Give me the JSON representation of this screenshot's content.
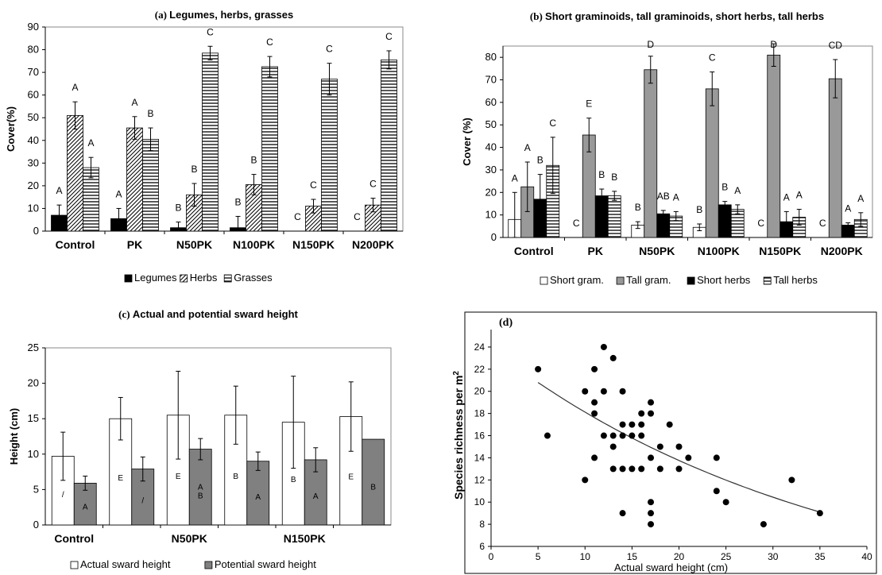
{
  "chart_data": [
    {
      "panel_id": "(a)",
      "type": "bar",
      "title": "Legumes, herbs, grasses",
      "ylabel": "Cover(%)",
      "xlabel": "",
      "ylim": [
        0,
        90
      ],
      "yticks": [
        0,
        10,
        20,
        30,
        40,
        50,
        60,
        70,
        80,
        90
      ],
      "grid": false,
      "legend_position": "bottom",
      "categories": [
        "Control",
        "PK",
        "N50PK",
        "N100PK",
        "N150PK",
        "N200PK"
      ],
      "series": [
        {
          "name": "Legumes",
          "fill": "solid",
          "color": "#000000",
          "values": [
            7,
            5.5,
            1.5,
            1.5,
            0,
            0
          ],
          "errors": [
            4.5,
            4.5,
            2.5,
            5,
            0,
            0
          ],
          "letters": [
            "A",
            "A",
            "B",
            "B",
            "C",
            "C"
          ]
        },
        {
          "name": "Herbs",
          "fill": "diagonal",
          "color": "#000000",
          "values": [
            51,
            45.5,
            16,
            20.5,
            11,
            11.5
          ],
          "errors": [
            6,
            5,
            5,
            4.5,
            3,
            3
          ],
          "letters": [
            "A",
            "A",
            "B",
            "B",
            "C",
            "C"
          ]
        },
        {
          "name": "Grasses",
          "fill": "horizontal",
          "color": "#000000",
          "values": [
            28,
            40.5,
            78.5,
            72.5,
            67,
            75.5
          ],
          "errors": [
            4.5,
            5,
            3,
            4.5,
            7,
            4
          ],
          "letters": [
            "A",
            "B",
            "C",
            "C",
            "C",
            "C"
          ]
        }
      ]
    },
    {
      "panel_id": "(b)",
      "type": "bar",
      "title": "Short graminoids, tall graminoids, short herbs, tall herbs",
      "ylabel": "Cover (%)",
      "xlabel": "",
      "ylim": [
        0,
        85
      ],
      "yticks": [
        0,
        10,
        20,
        30,
        40,
        50,
        60,
        70,
        80
      ],
      "grid": false,
      "legend_position": "bottom",
      "categories": [
        "Control",
        "PK",
        "N50PK",
        "N100PK",
        "N150PK",
        "N200PK"
      ],
      "series": [
        {
          "name": "Short gram.",
          "fill": "white",
          "color": "#000000",
          "values": [
            8,
            0,
            5.5,
            4.5,
            0,
            0
          ],
          "errors": [
            12,
            0,
            1.5,
            1.5,
            0,
            0
          ],
          "letters": [
            "A",
            "C",
            "B",
            "B",
            "C",
            "C"
          ]
        },
        {
          "name": "Tall gram.",
          "fill": "gray",
          "color": "#999999",
          "values": [
            22.5,
            45.5,
            74.5,
            66,
            81,
            70.5
          ],
          "errors": [
            11,
            7.5,
            6,
            7.5,
            5,
            8.5
          ],
          "letters": [
            "A",
            "E",
            "D",
            "C",
            "D",
            "CD"
          ]
        },
        {
          "name": "Short herbs",
          "fill": "solid",
          "color": "#000000",
          "values": [
            17,
            18.5,
            10.5,
            14.5,
            7,
            5.5
          ],
          "errors": [
            11,
            3,
            1.5,
            1.5,
            4.5,
            1
          ],
          "letters": [
            "B",
            "B",
            "AB",
            "B",
            "A",
            "A"
          ]
        },
        {
          "name": "Tall herbs",
          "fill": "horizontal",
          "color": "#000000",
          "values": [
            32,
            18.5,
            9.5,
            12.5,
            9,
            8
          ],
          "errors": [
            12.5,
            2,
            2,
            2,
            3.5,
            3
          ],
          "letters": [
            "C",
            "B",
            "A",
            "A",
            "A",
            "A"
          ]
        }
      ]
    },
    {
      "panel_id": "(c)",
      "type": "bar",
      "title": "Actual and potential sward height",
      "ylabel": "Height (cm)",
      "xlabel": "",
      "ylim": [
        0,
        25
      ],
      "yticks": [
        0,
        5,
        10,
        15,
        20,
        25
      ],
      "grid": false,
      "legend_position": "bottom",
      "categories": [
        "Control",
        "PK",
        "N50PK",
        "N100PK",
        "N150PK",
        "N200PK"
      ],
      "category_labels_shown": [
        "Control",
        "",
        "N50PK",
        "",
        "N150PK",
        ""
      ],
      "series": [
        {
          "name": "Actual sward height",
          "fill": "white",
          "color": "#000000",
          "values": [
            9.7,
            15,
            15.5,
            15.5,
            14.5,
            15.3
          ],
          "errors": [
            3.4,
            3,
            6.2,
            4.1,
            6.5,
            4.9
          ],
          "letters": [
            "/",
            "E",
            "E",
            "B",
            "B",
            "E"
          ]
        },
        {
          "name": "Potential sward height",
          "fill": "gray",
          "color": "#808080",
          "values": [
            5.9,
            7.9,
            10.7,
            9,
            9.2,
            12.1
          ],
          "errors": [
            1,
            1.7,
            1.5,
            1.3,
            1.7,
            0
          ],
          "letters": [
            "A",
            "/",
            "A\nB",
            "A",
            "A",
            "B"
          ]
        }
      ]
    },
    {
      "panel_id": "(d)",
      "type": "scatter",
      "title": "",
      "xlabel": "Actual sward height (cm)",
      "ylabel": "Species richness per m",
      "ylabel_superscript": "2",
      "xlim": [
        0,
        40
      ],
      "ylim": [
        6,
        25
      ],
      "xticks": [
        0,
        5,
        10,
        15,
        20,
        25,
        30,
        35,
        40
      ],
      "yticks": [
        6,
        8,
        10,
        12,
        14,
        16,
        18,
        20,
        22,
        24
      ],
      "grid": false,
      "points": [
        [
          5,
          22
        ],
        [
          6,
          16
        ],
        [
          10,
          20
        ],
        [
          10,
          12
        ],
        [
          11,
          22
        ],
        [
          11,
          19
        ],
        [
          11,
          18
        ],
        [
          11,
          14
        ],
        [
          12,
          24
        ],
        [
          12,
          20
        ],
        [
          12,
          16
        ],
        [
          13,
          23
        ],
        [
          13,
          16
        ],
        [
          13,
          15
        ],
        [
          13,
          13
        ],
        [
          14,
          20
        ],
        [
          14,
          17
        ],
        [
          14,
          16
        ],
        [
          14,
          13
        ],
        [
          14,
          9
        ],
        [
          15,
          17
        ],
        [
          15,
          16
        ],
        [
          15,
          13
        ],
        [
          16,
          18
        ],
        [
          16,
          17
        ],
        [
          16,
          16
        ],
        [
          16,
          13
        ],
        [
          17,
          19
        ],
        [
          17,
          18
        ],
        [
          17,
          14
        ],
        [
          17,
          10
        ],
        [
          17,
          9
        ],
        [
          17,
          8
        ],
        [
          18,
          15
        ],
        [
          18,
          13
        ],
        [
          19,
          17
        ],
        [
          20,
          15
        ],
        [
          20,
          13
        ],
        [
          21,
          14
        ],
        [
          24,
          14
        ],
        [
          24,
          11
        ],
        [
          25,
          10
        ],
        [
          29,
          8
        ],
        [
          32,
          12
        ],
        [
          35,
          9
        ]
      ],
      "trendline": {
        "type": "exponential",
        "y_at_x5": 20.8,
        "y_at_x35": 9.1
      }
    }
  ]
}
